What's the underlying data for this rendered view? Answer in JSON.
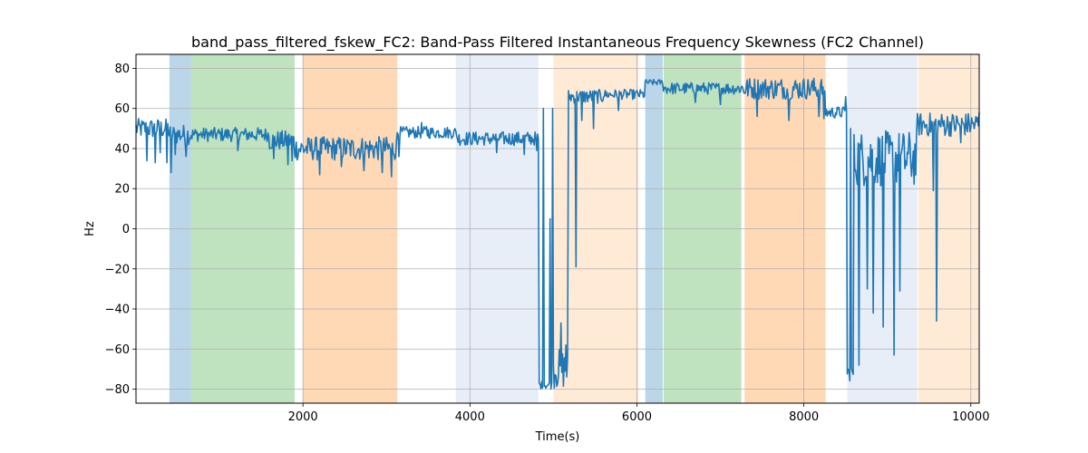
{
  "chart_data": {
    "type": "line",
    "title": "band_pass_filtered_fskew_FC2: Band-Pass Filtered Instantaneous Frequency Skewness (FC2 Channel)",
    "xlabel": "Time(s)",
    "ylabel": "Hz",
    "xlim": [
      0,
      10100
    ],
    "ylim": [
      -87,
      87
    ],
    "x_ticks": [
      2000,
      4000,
      6000,
      8000,
      10000
    ],
    "y_ticks": [
      -80,
      -60,
      -40,
      -20,
      0,
      20,
      40,
      60,
      80
    ],
    "grid": true,
    "line_color": "#1f77b4",
    "bands": [
      {
        "x0": 400,
        "x1": 660,
        "color": "#1f77b4",
        "opacity": 0.3
      },
      {
        "x0": 660,
        "x1": 1900,
        "color": "#2ca02c",
        "opacity": 0.3
      },
      {
        "x0": 2000,
        "x1": 3130,
        "color": "#ff7f0e",
        "opacity": 0.3
      },
      {
        "x0": 3830,
        "x1": 4820,
        "color": "#aec7e8",
        "opacity": 0.3
      },
      {
        "x0": 5000,
        "x1": 6020,
        "color": "#ffbb78",
        "opacity": 0.3
      },
      {
        "x0": 6100,
        "x1": 6310,
        "color": "#1f77b4",
        "opacity": 0.3
      },
      {
        "x0": 6320,
        "x1": 7250,
        "color": "#2ca02c",
        "opacity": 0.3
      },
      {
        "x0": 7290,
        "x1": 8260,
        "color": "#ff7f0e",
        "opacity": 0.3
      },
      {
        "x0": 8520,
        "x1": 9360,
        "color": "#aec7e8",
        "opacity": 0.3
      },
      {
        "x0": 9370,
        "x1": 10100,
        "color": "#ffbb78",
        "opacity": 0.3
      }
    ],
    "segments": [
      {
        "x0": 0,
        "x1": 400,
        "base": 50,
        "noise": 5,
        "dips": [
          [
            130,
            34
          ],
          [
            230,
            33
          ],
          [
            290,
            38
          ],
          [
            370,
            33
          ]
        ]
      },
      {
        "x0": 400,
        "x1": 660,
        "base": 47,
        "noise": 5,
        "dips": [
          [
            420,
            28
          ],
          [
            470,
            37
          ],
          [
            600,
            36
          ]
        ]
      },
      {
        "x0": 660,
        "x1": 1600,
        "base": 47,
        "noise": 3.5,
        "dips": [
          [
            1220,
            39
          ]
        ]
      },
      {
        "x0": 1600,
        "x1": 1900,
        "base": 44,
        "noise": 5,
        "dips": [
          [
            1650,
            35
          ],
          [
            1820,
            32
          ],
          [
            1870,
            34
          ]
        ]
      },
      {
        "x0": 1900,
        "x1": 3130,
        "base": 40,
        "noise": 6,
        "dips": [
          [
            2200,
            27
          ],
          [
            2460,
            31
          ],
          [
            2730,
            29
          ],
          [
            2950,
            28
          ],
          [
            3060,
            26
          ]
        ]
      },
      {
        "x0": 3130,
        "x1": 3850,
        "base": 48,
        "noise": 3,
        "dips": [
          [
            3150,
            36
          ],
          [
            3420,
            53
          ],
          [
            3480,
            51
          ]
        ]
      },
      {
        "x0": 3850,
        "x1": 4830,
        "base": 45,
        "noise": 3.5,
        "dips": [
          [
            4320,
            38
          ],
          [
            4650,
            37
          ],
          [
            4800,
            39
          ]
        ]
      },
      {
        "x0": 4830,
        "x1": 5000,
        "base": -78,
        "noise": 2,
        "dips": [
          [
            4880,
            60
          ],
          [
            4960,
            5
          ],
          [
            4990,
            60
          ]
        ]
      },
      {
        "x0": 5000,
        "x1": 5180,
        "base": -70,
        "noise": 10,
        "dips": [
          [
            5090,
            -47
          ],
          [
            5150,
            -58
          ]
        ]
      },
      {
        "x0": 5180,
        "x1": 5600,
        "base": 66,
        "noise": 3.5,
        "dips": [
          [
            5270,
            -19
          ],
          [
            5340,
            54
          ],
          [
            5480,
            50
          ]
        ]
      },
      {
        "x0": 5600,
        "x1": 6100,
        "base": 67,
        "noise": 2.5,
        "dips": [
          [
            5780,
            59
          ]
        ]
      },
      {
        "x0": 6100,
        "x1": 6320,
        "base": 73,
        "noise": 1.5,
        "dips": []
      },
      {
        "x0": 6320,
        "x1": 7250,
        "base": 70,
        "noise": 3,
        "dips": [
          [
            6700,
            63
          ],
          [
            7000,
            62
          ]
        ]
      },
      {
        "x0": 7250,
        "x1": 8260,
        "base": 70,
        "noise": 5.5,
        "dips": [
          [
            7440,
            56
          ],
          [
            7820,
            54
          ],
          [
            8180,
            56
          ],
          [
            8240,
            55
          ]
        ]
      },
      {
        "x0": 8260,
        "x1": 8520,
        "base": 58,
        "noise": 3,
        "dips": [
          [
            8500,
            66
          ]
        ]
      },
      {
        "x0": 8520,
        "x1": 8600,
        "base": -72,
        "noise": 4,
        "dips": [
          [
            8560,
            50
          ]
        ]
      },
      {
        "x0": 8600,
        "x1": 9360,
        "base": 35,
        "noise": 14,
        "dips": [
          [
            8660,
            -68
          ],
          [
            8760,
            -30
          ],
          [
            8830,
            -42
          ],
          [
            8950,
            -49
          ],
          [
            9080,
            -63
          ],
          [
            9150,
            -31
          ]
        ]
      },
      {
        "x0": 9360,
        "x1": 10100,
        "base": 52,
        "noise": 6,
        "dips": [
          [
            9550,
            19
          ],
          [
            9590,
            -46
          ],
          [
            9880,
            43
          ]
        ]
      }
    ]
  }
}
